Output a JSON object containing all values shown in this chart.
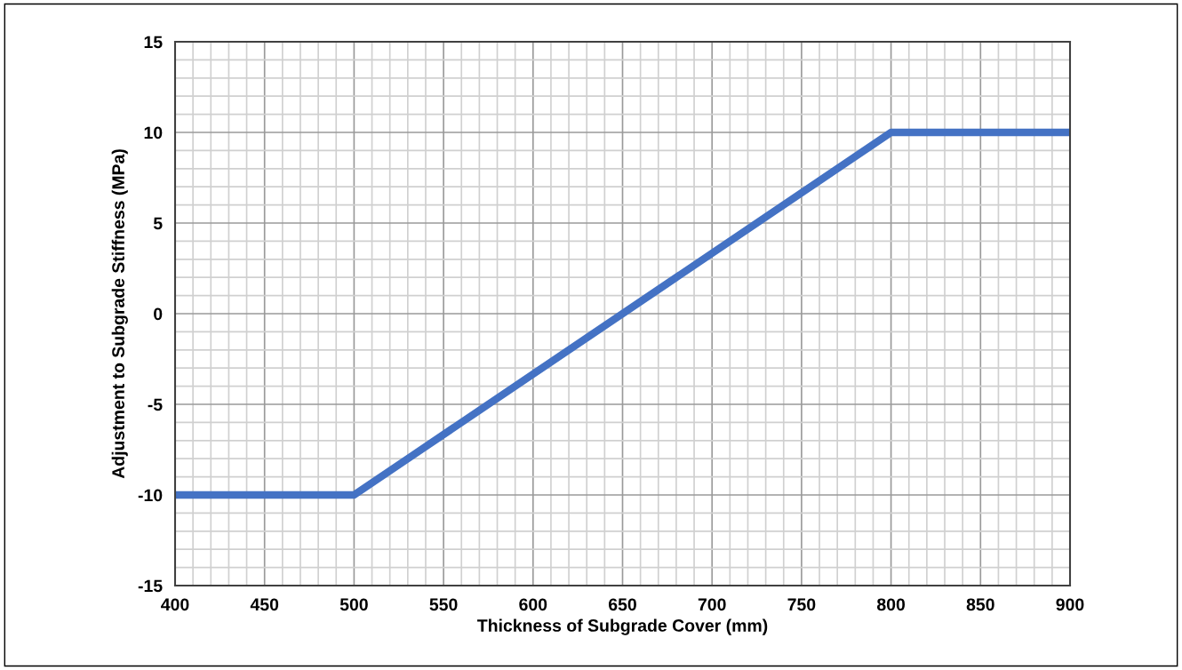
{
  "chart_data": {
    "type": "line",
    "xlabel": "Thickness of Subgrade Cover (mm)",
    "ylabel": "Adjustment to Subgrade Stiffness (MPa)",
    "x": [
      400,
      500,
      800,
      900
    ],
    "series": [
      {
        "color": "#4472c4",
        "values": [
          -10,
          -10,
          10,
          10
        ]
      }
    ],
    "xlim": [
      400,
      900
    ],
    "xticks": [
      400,
      450,
      500,
      550,
      600,
      650,
      700,
      750,
      800,
      850,
      900
    ],
    "ylim": [
      -15,
      15
    ],
    "yticks": [
      -15,
      -10,
      -5,
      0,
      5,
      10,
      15
    ],
    "grid": true,
    "marker": "none",
    "line_style": "solid"
  }
}
